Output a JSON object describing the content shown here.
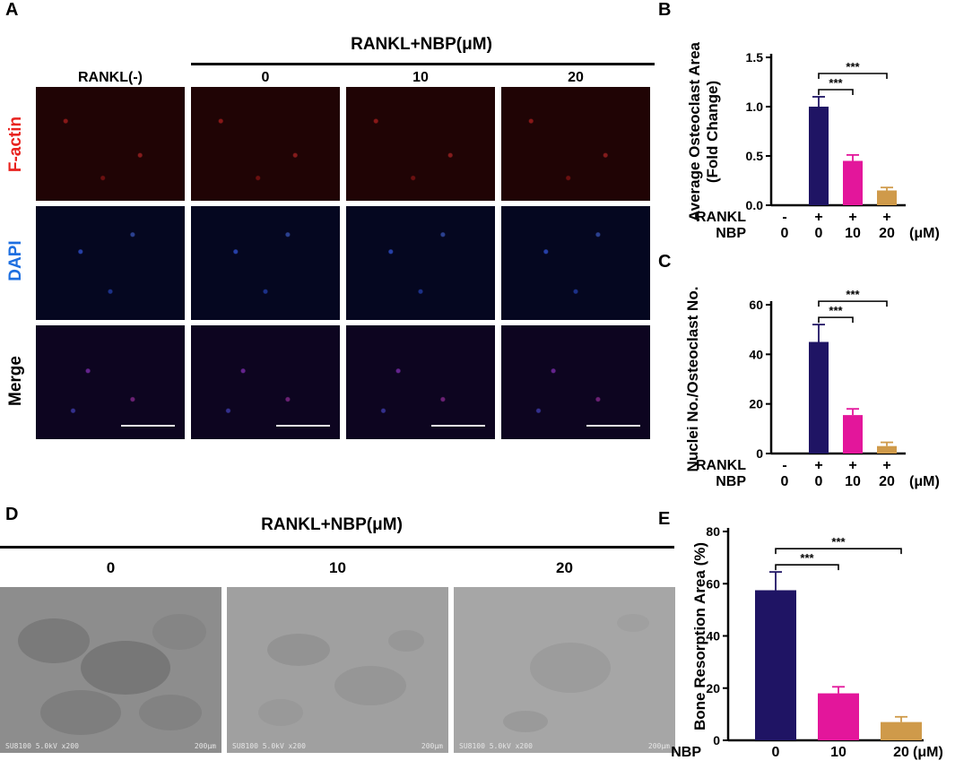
{
  "panel_letters": {
    "A": "A",
    "B": "B",
    "C": "C",
    "D": "D",
    "E": "E"
  },
  "panelA": {
    "group_header": "RANKL+NBP(μM)",
    "columns": [
      "RANKL(-)",
      "0",
      "10",
      "20"
    ],
    "rows": [
      {
        "label": "F-actin",
        "color": "#e8231f"
      },
      {
        "label": "DAPI",
        "color": "#1e6fe0"
      },
      {
        "label": "Merge",
        "color": "#000000"
      }
    ]
  },
  "panelD": {
    "group_header": "RANKL+NBP(μM)",
    "columns": [
      "0",
      "10",
      "20"
    ],
    "sem_captions": [
      {
        "left": "SU8100 5.0kV x200",
        "right": "200μm"
      },
      {
        "left": "SU8100 5.0kV x200",
        "right": "200μm"
      },
      {
        "left": "SU8100 5.0kV x200",
        "right": "200μm"
      }
    ]
  },
  "colors": {
    "navy": "#1f1464",
    "magenta": "#e3169b",
    "gold": "#cf9a4a",
    "black": "#000000"
  },
  "chart_data": [
    {
      "panel": "B",
      "type": "bar",
      "ylabel": "Average Osteoclast Area\n(Fold Change)",
      "ylim": [
        0,
        1.5
      ],
      "yticks": [
        "0.0",
        "0.5",
        "1.0",
        "1.5"
      ],
      "row_labels": [
        "RANKL",
        "NBP"
      ],
      "conditions": [
        {
          "rankl": "-",
          "nbp": "0",
          "value": 0.0,
          "error": 0.0,
          "color": "#1f1464"
        },
        {
          "rankl": "+",
          "nbp": "0",
          "value": 1.0,
          "error": 0.1,
          "color": "#1f1464"
        },
        {
          "rankl": "+",
          "nbp": "10",
          "value": 0.45,
          "error": 0.06,
          "color": "#e3169b"
        },
        {
          "rankl": "+",
          "nbp": "20",
          "value": 0.15,
          "error": 0.03,
          "color": "#cf9a4a"
        }
      ],
      "unit": "(μM)",
      "significance": [
        {
          "from": 1,
          "to": 2,
          "label": "***"
        },
        {
          "from": 1,
          "to": 3,
          "label": "***"
        }
      ]
    },
    {
      "panel": "C",
      "type": "bar",
      "ylabel": "Nuclei No./Osteoclast No.",
      "ylim": [
        0,
        60
      ],
      "yticks": [
        "0",
        "20",
        "40",
        "60"
      ],
      "row_labels": [
        "RANKL",
        "NBP"
      ],
      "conditions": [
        {
          "rankl": "-",
          "nbp": "0",
          "value": 0,
          "error": 0,
          "color": "#1f1464"
        },
        {
          "rankl": "+",
          "nbp": "0",
          "value": 45,
          "error": 7,
          "color": "#1f1464"
        },
        {
          "rankl": "+",
          "nbp": "10",
          "value": 15.5,
          "error": 2.5,
          "color": "#e3169b"
        },
        {
          "rankl": "+",
          "nbp": "20",
          "value": 3,
          "error": 1.5,
          "color": "#cf9a4a"
        }
      ],
      "unit": "(μM)",
      "significance": [
        {
          "from": 1,
          "to": 2,
          "label": "***"
        },
        {
          "from": 1,
          "to": 3,
          "label": "***"
        }
      ]
    },
    {
      "panel": "E",
      "type": "bar",
      "ylabel": "Bone Resorption Area (%)",
      "ylim": [
        0,
        80
      ],
      "yticks": [
        "0",
        "20",
        "40",
        "60",
        "80"
      ],
      "row_labels": [
        "NBP"
      ],
      "conditions": [
        {
          "nbp": "0",
          "value": 57.5,
          "error": 7,
          "color": "#1f1464"
        },
        {
          "nbp": "10",
          "value": 18,
          "error": 2.5,
          "color": "#e3169b"
        },
        {
          "nbp": "20",
          "value": 7,
          "error": 2,
          "color": "#cf9a4a"
        }
      ],
      "unit": "(μM)",
      "significance": [
        {
          "from": 0,
          "to": 1,
          "label": "***"
        },
        {
          "from": 0,
          "to": 2,
          "label": "***"
        }
      ]
    }
  ]
}
